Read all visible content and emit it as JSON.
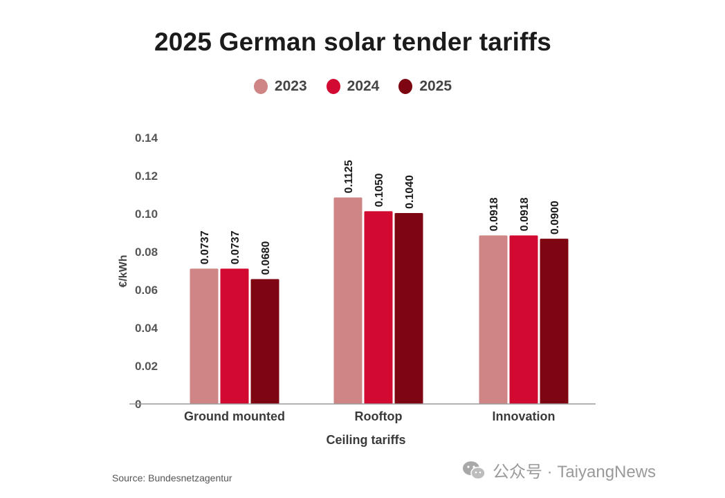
{
  "chart_data": {
    "type": "bar",
    "title": "2025 German solar tender tariffs",
    "categories": [
      "Ground mounted",
      "Rooftop",
      "Innovation"
    ],
    "series": [
      {
        "name": "2023",
        "color": "#cf8585",
        "values": [
          0.0737,
          0.1125,
          0.0918
        ],
        "labels": [
          "0.0737",
          "0.1125",
          "0.0918"
        ]
      },
      {
        "name": "2024",
        "color": "#d20a32",
        "values": [
          0.0737,
          0.105,
          0.0918
        ],
        "labels": [
          "0.0737",
          "0.1050",
          "0.0918"
        ]
      },
      {
        "name": "2025",
        "color": "#7d0612",
        "values": [
          0.068,
          0.104,
          0.09
        ],
        "labels": [
          "0.0680",
          "0.1040",
          "0.0900"
        ]
      }
    ],
    "xlabel": "Ceiling tariffs",
    "ylabel": "€/kWh",
    "ylim": [
      0,
      0.14
    ],
    "yticks": [
      "0",
      "0.02",
      "0.04",
      "0.06",
      "0.08",
      "0.10",
      "0.12",
      "0.14"
    ],
    "grid": false,
    "legend": "top-center"
  },
  "source": "Source: Bundesnetzagentur",
  "watermark": "公众号 · TaiyangNews"
}
